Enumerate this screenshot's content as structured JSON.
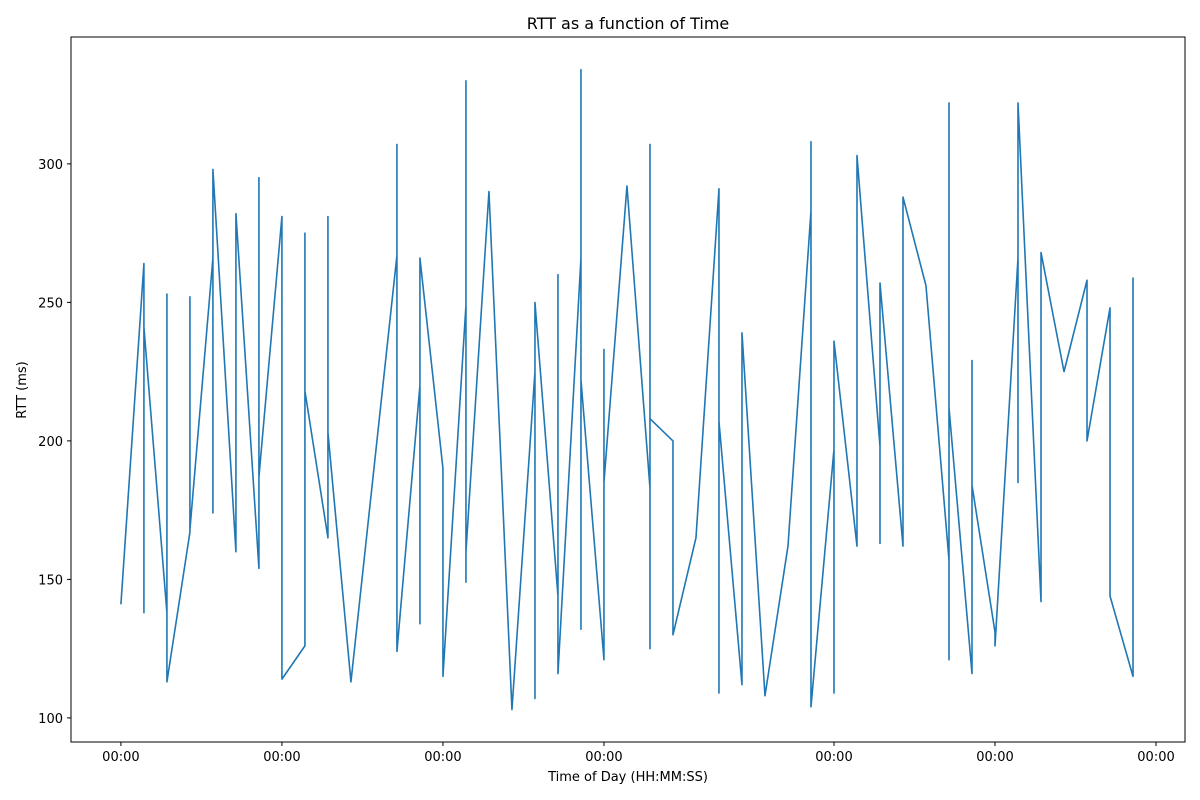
{
  "chart_data": {
    "type": "line",
    "title": "RTT as a function of Time",
    "x_label": "Time of Day (HH:MM:SS)",
    "y_label": "RTT (ms)",
    "x": [
      0,
      1,
      1,
      1,
      2,
      2,
      2,
      3,
      3,
      3,
      4,
      4,
      4,
      5,
      5,
      6,
      6,
      6,
      7,
      7,
      8,
      8,
      8,
      8,
      9,
      9,
      9,
      10,
      12,
      12,
      12,
      12,
      13,
      13,
      13,
      14,
      14,
      15,
      15,
      15,
      15,
      16,
      17,
      18,
      18,
      18,
      19,
      19,
      19,
      20,
      20,
      20,
      20,
      20,
      21,
      21,
      21,
      22,
      23,
      23,
      23,
      23,
      24,
      24,
      25,
      26,
      26,
      26,
      27,
      27,
      28,
      29,
      30,
      30,
      30,
      31,
      31,
      31,
      32,
      32,
      33,
      33,
      33,
      34,
      34,
      35,
      36,
      36,
      36,
      36,
      37,
      37,
      37,
      38,
      38,
      39,
      39,
      39,
      40,
      40,
      40,
      40,
      41,
      42,
      42,
      43,
      43,
      44,
      44
    ],
    "series": [
      {
        "name": "RTT",
        "color": "#1f77b4",
        "values": [
          141,
          264,
          138,
          241,
          138,
          253,
          113,
          167,
          252,
          168,
          266,
          174,
          298,
          160,
          282,
          154,
          295,
          187,
          281,
          114,
          126,
          275,
          150,
          218,
          165,
          281,
          203,
          113,
          267,
          307,
          183,
          124,
          220,
          134,
          266,
          190,
          115,
          249,
          330,
          149,
          160,
          290,
          103,
          225,
          107,
          250,
          144,
          260,
          116,
          266,
          132,
          334,
          171,
          222,
          121,
          233,
          185,
          292,
          183,
          307,
          125,
          208,
          200,
          130,
          165,
          291,
          109,
          207,
          112,
          239,
          108,
          162,
          283,
          308,
          104,
          197,
          109,
          236,
          162,
          303,
          198,
          163,
          257,
          162,
          288,
          256,
          157,
          121,
          322,
          212,
          116,
          229,
          184,
          131,
          126,
          266,
          185,
          322,
          142,
          234,
          155,
          268,
          225,
          258,
          200,
          248,
          144,
          115,
          259
        ]
      }
    ],
    "xlim": [
      -2.17,
      46.26
    ],
    "xticks": [
      {
        "value": 0,
        "label": "00:00"
      },
      {
        "value": 7,
        "label": "00:00"
      },
      {
        "value": 14,
        "label": "00:00"
      },
      {
        "value": 21,
        "label": "00:00"
      },
      {
        "value": 31,
        "label": "00:00"
      },
      {
        "value": 38,
        "label": "00:00"
      },
      {
        "value": 45,
        "label": "00:00"
      }
    ],
    "ylim": [
      91.3,
      345.8
    ],
    "yticks": [
      100,
      150,
      200,
      250,
      300
    ],
    "grid": false
  }
}
